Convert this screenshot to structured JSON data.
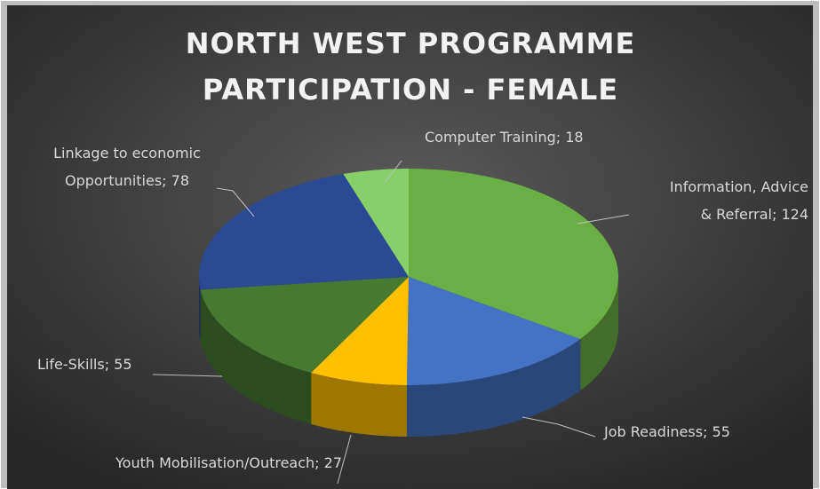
{
  "chart_data": {
    "type": "pie",
    "title": "NORTH WEST PROGRAMME PARTICIPATION - FEMALE",
    "categories": [
      "Information, Advice & Referral",
      "Job Readiness",
      "Youth Mobilisation/Outreach",
      "Life-Skills",
      "Linkage to economic Opportunities",
      "Computer Training"
    ],
    "values": [
      124,
      55,
      27,
      55,
      78,
      18
    ],
    "value_labels": [
      "Information, Advice & Referral; 124",
      "Job Readiness; 55",
      "Youth Mobilisation/Outreach; 27",
      "Life-Skills; 55",
      "Linkage to economic Opportunities; 78",
      "Computer Training; 18"
    ],
    "colors": [
      "#6aaf45",
      "#4472c4",
      "#ffc000",
      "#467a30",
      "#2a4a93",
      "#86cf6b"
    ]
  }
}
